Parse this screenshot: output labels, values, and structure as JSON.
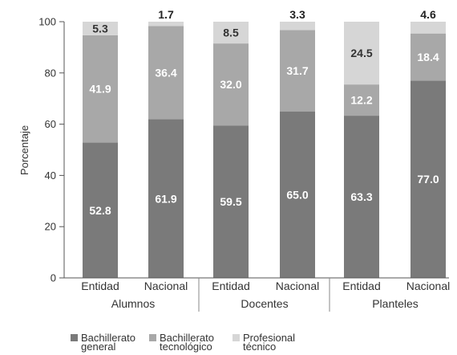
{
  "chart_data": {
    "type": "bar",
    "stacked": true,
    "ylabel": "Porcentaje",
    "ylim": [
      0,
      100
    ],
    "yticks": [
      0,
      20,
      40,
      60,
      80,
      100
    ],
    "grid": false,
    "legend_position": "bottom-left",
    "groups": [
      "Alumnos",
      "Docentes",
      "Planteles"
    ],
    "categories": [
      "Entidad",
      "Nacional",
      "Entidad",
      "Nacional",
      "Entidad",
      "Nacional"
    ],
    "series": [
      {
        "name": "Bachillerato general",
        "color": "#7a7a7a",
        "label_color": "#ffffff",
        "values": [
          52.8,
          61.9,
          59.5,
          65.0,
          63.3,
          77.0
        ]
      },
      {
        "name": "Bachillerato tecnológico",
        "color": "#a8a8a8",
        "label_color": "#ffffff",
        "values": [
          41.9,
          36.4,
          32.0,
          31.7,
          12.2,
          18.4
        ]
      },
      {
        "name": "Profesional técnico",
        "color": "#d6d6d6",
        "label_color": "#333333",
        "values": [
          5.3,
          1.7,
          8.5,
          3.3,
          24.5,
          4.6
        ]
      }
    ],
    "labels": [
      [
        "52.8",
        "61.9",
        "59.5",
        "65.0",
        "63.3",
        "77.0"
      ],
      [
        "41.9",
        "36.4",
        "32.0",
        "31.7",
        "12.2",
        "18.4"
      ],
      [
        "5.3",
        "1.7",
        "8.5",
        "3.3",
        "24.5",
        "4.6"
      ]
    ],
    "label_outside_top": [
      false,
      true,
      false,
      true,
      false,
      true
    ],
    "legend": [
      {
        "lines": [
          "Bachillerato",
          "general"
        ]
      },
      {
        "lines": [
          "Bachillerato",
          "tecnológico"
        ]
      },
      {
        "lines": [
          "Profesional",
          "técnico"
        ]
      }
    ]
  }
}
